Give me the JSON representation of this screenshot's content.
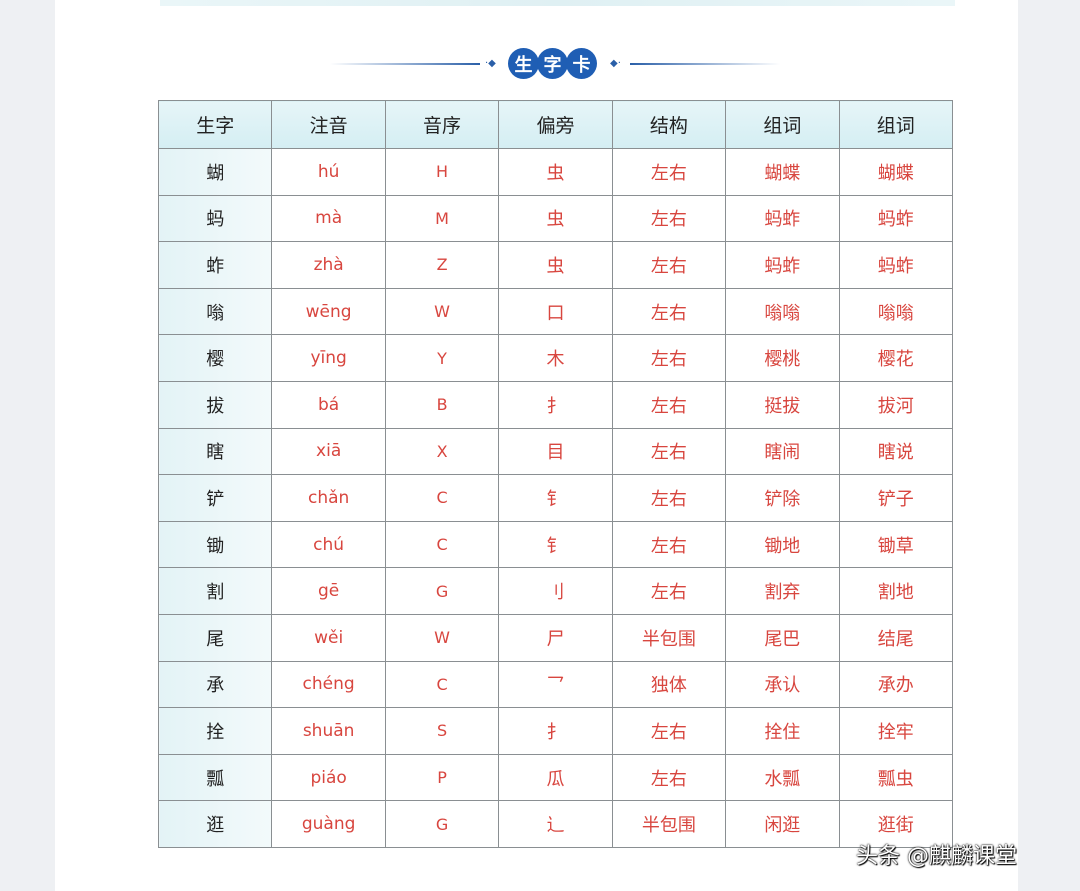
{
  "title": [
    "生",
    "字",
    "卡"
  ],
  "headers": [
    "生字",
    "注音",
    "音序",
    "偏旁",
    "结构",
    "组词",
    "组词"
  ],
  "rows": [
    [
      "蝴",
      "hú",
      "H",
      "虫",
      "左右",
      "蝴蝶",
      "蝴蝶"
    ],
    [
      "蚂",
      "mà",
      "M",
      "虫",
      "左右",
      "蚂蚱",
      "蚂蚱"
    ],
    [
      "蚱",
      "zhà",
      "Z",
      "虫",
      "左右",
      "蚂蚱",
      "蚂蚱"
    ],
    [
      "嗡",
      "wēng",
      "W",
      "口",
      "左右",
      "嗡嗡",
      "嗡嗡"
    ],
    [
      "樱",
      "yīng",
      "Y",
      "木",
      "左右",
      "樱桃",
      "樱花"
    ],
    [
      "拔",
      "bá",
      "B",
      "扌",
      "左右",
      "挺拔",
      "拔河"
    ],
    [
      "瞎",
      "xiā",
      "X",
      "目",
      "左右",
      "瞎闹",
      "瞎说"
    ],
    [
      "铲",
      "chǎn",
      "C",
      "钅",
      "左右",
      "铲除",
      "铲子"
    ],
    [
      "锄",
      "chú",
      "C",
      "钅",
      "左右",
      "锄地",
      "锄草"
    ],
    [
      "割",
      "gē",
      "G",
      "刂",
      "左右",
      "割弃",
      "割地"
    ],
    [
      "尾",
      "wěi",
      "W",
      "尸",
      "半包围",
      "尾巴",
      "结尾"
    ],
    [
      "承",
      "chéng",
      "C",
      "乛",
      "独体",
      "承认",
      "承办"
    ],
    [
      "拴",
      "shuān",
      "S",
      "扌",
      "左右",
      "拴住",
      "拴牢"
    ],
    [
      "瓢",
      "piáo",
      "P",
      "瓜",
      "左右",
      "水瓢",
      "瓢虫"
    ],
    [
      "逛",
      "guàng",
      "G",
      "辶",
      "半包围",
      "闲逛",
      "逛街"
    ]
  ],
  "watermark": "头条 @麒麟课堂",
  "colors": {
    "accent": "#1f5eb4",
    "text_red": "#d8463f",
    "header_bg": "#d4eef3"
  }
}
